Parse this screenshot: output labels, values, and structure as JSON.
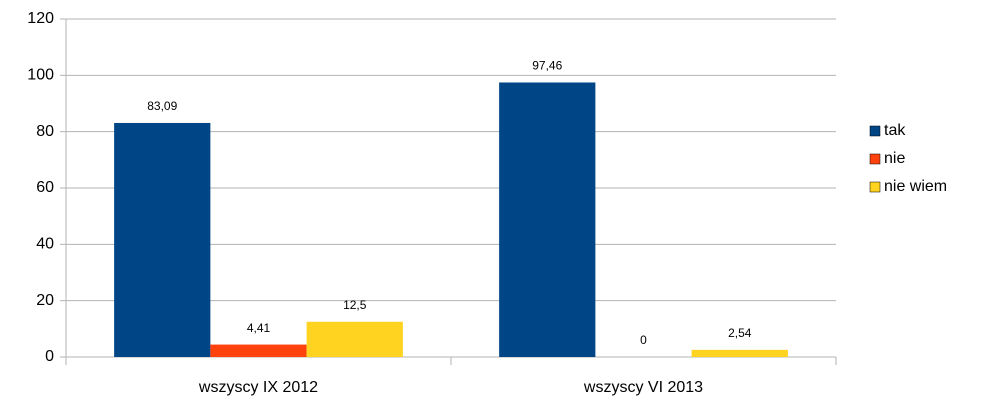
{
  "chart_data": {
    "type": "bar",
    "categories": [
      "wszyscy IX 2012",
      "wszyscy VI 2013"
    ],
    "series": [
      {
        "name": "tak",
        "color": "#004586",
        "values": [
          83.09,
          97.46
        ],
        "value_labels": [
          "83,09",
          "97,46"
        ]
      },
      {
        "name": "nie",
        "color": "#ff420e",
        "values": [
          4.41,
          0
        ],
        "value_labels": [
          "4,41",
          "0"
        ]
      },
      {
        "name": "nie wiem",
        "color": "#ffd320",
        "values": [
          12.5,
          2.54
        ],
        "value_labels": [
          "12,5",
          "2,54"
        ]
      }
    ],
    "ylim": [
      0,
      120
    ],
    "yticks": [
      0,
      20,
      40,
      60,
      80,
      100,
      120
    ],
    "grid": true,
    "legend": "right"
  }
}
